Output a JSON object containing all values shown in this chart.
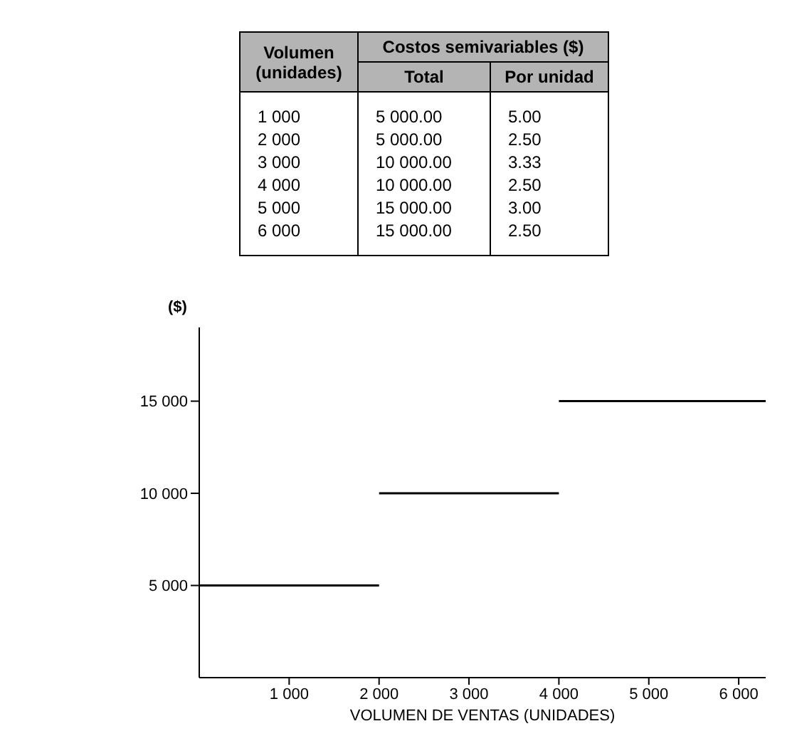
{
  "chart_data": {
    "type": "line",
    "xlabel": "VOLUMEN DE VENTAS (UNIDADES)",
    "ylabel": "($)",
    "xlim": [
      0,
      6300
    ],
    "ylim": [
      0,
      19000
    ],
    "xticks": [
      {
        "value": 1000,
        "label": "1 000"
      },
      {
        "value": 2000,
        "label": "2 000"
      },
      {
        "value": 3000,
        "label": "3 000"
      },
      {
        "value": 4000,
        "label": "4 000"
      },
      {
        "value": 5000,
        "label": "5 000"
      },
      {
        "value": 6000,
        "label": "6 000"
      }
    ],
    "yticks": [
      {
        "value": 5000,
        "label": "5 000"
      },
      {
        "value": 10000,
        "label": "10 000"
      },
      {
        "value": 15000,
        "label": "15 000"
      }
    ],
    "marker": "none",
    "line_style": "solid",
    "series": [
      {
        "color": "#000000",
        "x": [
          0,
          2000
        ],
        "values": [
          5000,
          5000
        ]
      },
      {
        "color": "#000000",
        "x": [
          2000,
          4000
        ],
        "values": [
          10000,
          10000
        ]
      },
      {
        "color": "#000000",
        "x": [
          4000,
          6300
        ],
        "values": [
          15000,
          15000
        ]
      }
    ],
    "annotations": [
      "Volumen (unidades)",
      "Costos semivariables ($)",
      "Total",
      "Por unidad",
      "1 000",
      "5 000.00",
      "5.00",
      "2 000",
      "5 000.00",
      "2.50",
      "3 000",
      "10 000.00",
      "3.33",
      "4 000",
      "10 000.00",
      "2.50",
      "5 000",
      "15 000.00",
      "3.00",
      "6 000",
      "15 000.00",
      "2.50"
    ]
  }
}
